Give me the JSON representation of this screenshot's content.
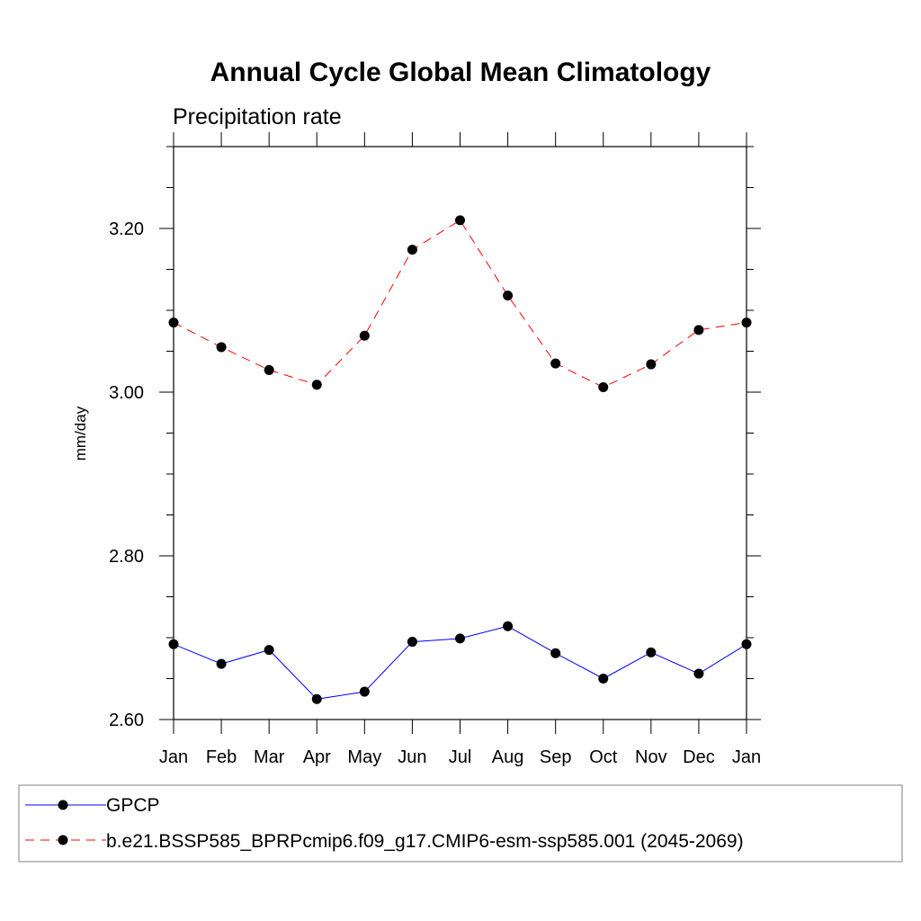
{
  "chart_data": {
    "type": "line",
    "title": "Annual Cycle Global Mean Climatology",
    "subtitle": "Precipitation rate",
    "xlabel": "",
    "ylabel": "mm/day",
    "categories": [
      "Jan",
      "Feb",
      "Mar",
      "Apr",
      "May",
      "Jun",
      "Jul",
      "Aug",
      "Sep",
      "Oct",
      "Nov",
      "Dec",
      "Jan"
    ],
    "ylim": [
      2.6,
      3.3
    ],
    "yticks": [
      2.6,
      2.8,
      3.0,
      3.2
    ],
    "ytick_labels": [
      "2.60",
      "2.80",
      "3.00",
      "3.20"
    ],
    "grid": false,
    "legend_position": "bottom",
    "series": [
      {
        "name": "GPCP",
        "color": "#0000ff",
        "line_style": "solid",
        "marker": "filled-circle",
        "values": [
          2.692,
          2.668,
          2.685,
          2.625,
          2.634,
          2.695,
          2.699,
          2.714,
          2.681,
          2.65,
          2.682,
          2.656,
          2.692
        ]
      },
      {
        "name": "b.e21.BSSP585_BPRPcmip6.f09_g17.CMIP6-esm-ssp585.001 (2045-2069)",
        "color": "#ff0000",
        "line_style": "dashed",
        "marker": "filled-circle",
        "values": [
          3.085,
          3.055,
          3.027,
          3.009,
          3.069,
          3.174,
          3.21,
          3.118,
          3.035,
          3.006,
          3.034,
          3.076,
          3.085
        ]
      }
    ]
  }
}
